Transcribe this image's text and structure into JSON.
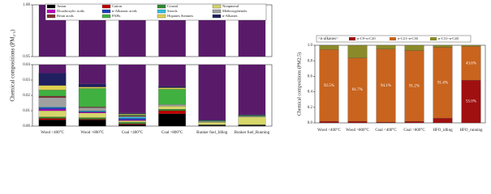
{
  "chart_data": [
    {
      "type": "stacked_bar_broken",
      "y_label": "Chemical compositions (PM₂.₅)",
      "categories": [
        "Wood <400°C",
        "Wood >800°C",
        "Coal <400°C",
        "Coal >800°C",
        "Bunker fuel_Idling",
        "Bunker fuel_Running"
      ],
      "series": [
        {
          "name": "Anion",
          "color": "#000000",
          "values": [
            0.004,
            0.004,
            0.001,
            0.008,
            0.0005,
            0.0005
          ]
        },
        {
          "name": "Cation",
          "color": "#c00000",
          "values": [
            0.001,
            0.0005,
            0.0005,
            0.002,
            0.0002,
            0.0002
          ]
        },
        {
          "name": "Crustal",
          "color": "#2e8b2e",
          "values": [
            0.001,
            0.001,
            0.001,
            0.001,
            0.0003,
            0.0003
          ]
        },
        {
          "name": "Nonpmeral",
          "color": "#d6d66a",
          "values": [
            0.004,
            0.003,
            0.001,
            0.002,
            0.0015,
            0.005
          ]
        },
        {
          "name": "Dicarboxylic acids",
          "color": "#c000c0",
          "values": [
            0.001,
            0.0005,
            0.0005,
            0,
            0,
            0
          ]
        },
        {
          "name": "n-Alkanoic acids",
          "color": "#1f3fbf",
          "values": [
            0.001,
            0.0005,
            0.001,
            0,
            0,
            0
          ]
        },
        {
          "name": "Sterols",
          "color": "#30c0e0",
          "values": [
            0.0005,
            0.0005,
            0.001,
            0,
            0,
            0
          ]
        },
        {
          "name": "Methoxyphenols",
          "color": "#a0a0a0",
          "values": [
            0.006,
            0.002,
            0.0005,
            0.001,
            0.0005,
            0.0005
          ]
        },
        {
          "name": "Resin acids",
          "color": "#7f3030",
          "values": [
            0.001,
            0.0005,
            0.0005,
            0,
            0,
            0
          ]
        },
        {
          "name": "PAHs",
          "color": "#40b040",
          "values": [
            0.004,
            0.012,
            0.0005,
            0.01,
            0.0005,
            0.0005
          ]
        },
        {
          "name": "Hopanes Steranes",
          "color": "#e0d050",
          "values": [
            0.003,
            0.001,
            0.0005,
            0.001,
            0,
            0
          ]
        },
        {
          "name": "n-Alkanes",
          "color": "#202060",
          "values": [
            0.008,
            0.002,
            0.0005,
            0.001,
            0.0005,
            0.0005
          ]
        }
      ],
      "ylim": [
        0,
        0.04
      ],
      "yticks": [
        {
          "value": 0,
          "label": "0.00"
        },
        0.01,
        0.02,
        0.03,
        0.04
      ],
      "ylim_upper": [
        0.95,
        1
      ],
      "yticks_upper": [
        0.95,
        {
          "value": 1,
          "label": "1.00"
        }
      ]
    },
    {
      "type": "stacked_bar",
      "y_label": "Chemical compositions (PM2.5)",
      "legend_title": "<n-alkanes>",
      "categories": [
        "Wood <400°C",
        "Wood >800°C",
        "Coal <400°C",
        "Coal >800°C",
        "HFO_idling",
        "HFO_running"
      ],
      "series": [
        {
          "name": "n-C9~n-C20",
          "color": "#a01010",
          "values": [
            0.02,
            0.02,
            0.01,
            0.02,
            0.06,
            0.55
          ],
          "value_labels": [
            null,
            null,
            null,
            null,
            null,
            "55.0%"
          ]
        },
        {
          "name": "n-C21~n-C30",
          "color": "#c8641e",
          "values": [
            0.925,
            0.817,
            0.941,
            0.912,
            0.914,
            0.436
          ],
          "value_labels": [
            "92.5%",
            "81.7%",
            "94.1%",
            "91.2%",
            "91.4%",
            "43.6%"
          ]
        },
        {
          "name": "n-C31~n-C40",
          "color": "#8a8a2a",
          "values": [
            0.055,
            0.163,
            0.049,
            0.068,
            0.026,
            0.014
          ]
        }
      ],
      "ylim": [
        0,
        1
      ],
      "yticks": [
        {
          "value": 0,
          "label": "0.0"
        },
        0.2,
        0.4,
        0.6,
        0.8,
        {
          "value": 1,
          "label": "1.0"
        }
      ]
    }
  ]
}
